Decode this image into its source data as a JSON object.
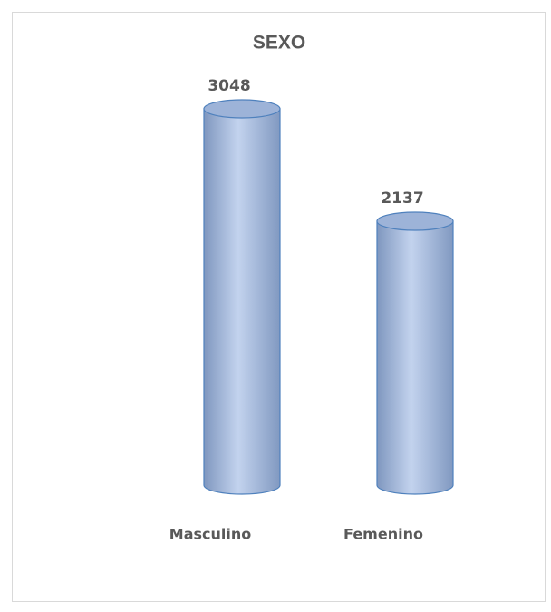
{
  "chart_data": {
    "type": "cylinder",
    "title": "SEXO",
    "categories": [
      "Masculino",
      "Femenino"
    ],
    "values": [
      3048,
      2137
    ],
    "color": "#4f81bd"
  }
}
